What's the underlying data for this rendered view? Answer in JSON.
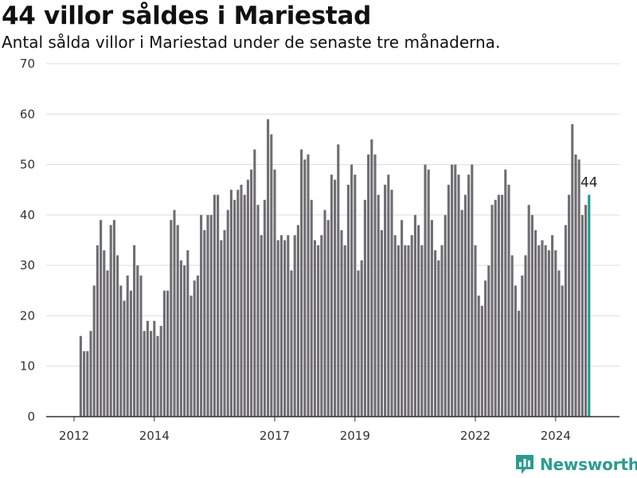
{
  "title": "44 villor såldes i Mariestad",
  "subtitle": "Antal sålda villor i Mariestad under de senaste tre månaderna.",
  "brand": {
    "name": "Newsworthy",
    "logo_icon": "bar-chart-logo-icon",
    "color": "#2a9d8f"
  },
  "colors": {
    "bar": "#6f6d72",
    "highlight": "#1a9a91",
    "grid": "#dddddd",
    "axis": "#333333"
  },
  "chart_data": {
    "type": "bar",
    "title": "44 villor såldes i Mariestad",
    "subtitle": "Antal sålda villor i Mariestad under de senaste tre månaderna.",
    "xlabel": "",
    "ylabel": "",
    "ylim": [
      0,
      70
    ],
    "yticks": [
      0,
      10,
      20,
      30,
      40,
      50,
      60,
      70
    ],
    "grid": true,
    "x_start": "2012-03",
    "x_interval": "month",
    "xticks": [
      {
        "label": "2012",
        "date": "2012-01"
      },
      {
        "label": "2014",
        "date": "2014-01"
      },
      {
        "label": "2017",
        "date": "2017-01"
      },
      {
        "label": "2019",
        "date": "2019-01"
      },
      {
        "label": "2022",
        "date": "2022-01"
      },
      {
        "label": "2024",
        "date": "2024-01"
      }
    ],
    "values": [
      16,
      13,
      13,
      17,
      26,
      34,
      39,
      33,
      29,
      38,
      39,
      32,
      26,
      23,
      28,
      25,
      34,
      30,
      28,
      17,
      19,
      17,
      19,
      16,
      18,
      25,
      25,
      39,
      41,
      38,
      31,
      30,
      33,
      24,
      27,
      28,
      40,
      37,
      40,
      40,
      44,
      44,
      35,
      37,
      41,
      45,
      43,
      45,
      46,
      44,
      47,
      49,
      53,
      42,
      36,
      43,
      59,
      56,
      49,
      35,
      36,
      35,
      36,
      29,
      36,
      38,
      53,
      51,
      52,
      43,
      35,
      34,
      36,
      41,
      39,
      48,
      47,
      54,
      37,
      34,
      46,
      50,
      48,
      29,
      31,
      43,
      52,
      55,
      52,
      44,
      37,
      46,
      48,
      45,
      36,
      34,
      39,
      34,
      34,
      36,
      40,
      38,
      34,
      50,
      49,
      39,
      33,
      31,
      34,
      40,
      46,
      50,
      50,
      48,
      41,
      44,
      48,
      50,
      34,
      24,
      22,
      27,
      30,
      42,
      43,
      44,
      44,
      49,
      46,
      32,
      26,
      21,
      28,
      32,
      42,
      40,
      37,
      34,
      35,
      34,
      33,
      36,
      33,
      29,
      26,
      38,
      44,
      58,
      52,
      51,
      40,
      42,
      44
    ],
    "highlight_last": true,
    "last_value_label": "44"
  }
}
